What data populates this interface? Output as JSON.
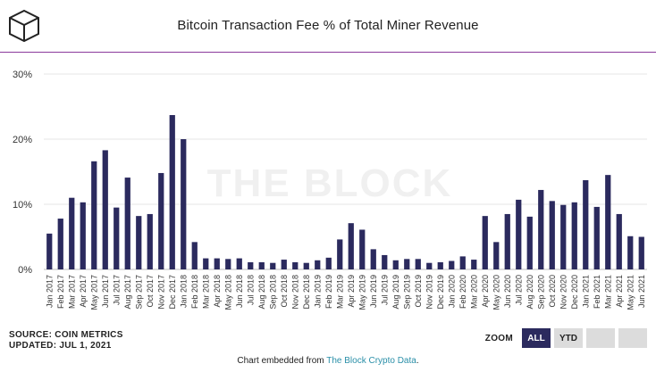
{
  "header": {
    "title": "Bitcoin Transaction Fee % of Total Miner Revenue",
    "logo_icon": "the-block-cube-icon"
  },
  "watermark": "THE BLOCK",
  "footer": {
    "source_line1": "SOURCE: COIN METRICS",
    "source_line2": "UPDATED: JUL 1, 2021",
    "zoom_label": "ZOOM",
    "zoom_all": "ALL",
    "zoom_ytd": "YTD",
    "embed_text": "Chart embedded from ",
    "embed_link": "The Block Crypto Data",
    "embed_end": "."
  },
  "colors": {
    "bar": "#2b2a5e",
    "accent_rule": "#8b3a9b",
    "link": "#2a8fa8",
    "grid": "#e6e6e6",
    "watermark": "#f0f0f0"
  },
  "chart_data": {
    "type": "bar",
    "title": "Bitcoin Transaction Fee % of Total Miner Revenue",
    "xlabel": "",
    "ylabel": "",
    "ylim": [
      0,
      30
    ],
    "yticks": [
      "0%",
      "10%",
      "20%",
      "30%"
    ],
    "ytick_values": [
      0,
      10,
      20,
      30
    ],
    "grid": true,
    "legend": "none",
    "categories": [
      "Jan 2017",
      "Feb 2017",
      "Mar 2017",
      "Apr 2017",
      "May 2017",
      "Jun 2017",
      "Jul 2017",
      "Aug 2017",
      "Sep 2017",
      "Oct 2017",
      "Nov 2017",
      "Dec 2017",
      "Jan 2018",
      "Feb 2018",
      "Mar 2018",
      "Apr 2018",
      "May 2018",
      "Jun 2018",
      "Jul 2018",
      "Aug 2018",
      "Sep 2018",
      "Oct 2018",
      "Nov 2018",
      "Dec 2018",
      "Jan 2019",
      "Feb 2019",
      "Mar 2019",
      "Apr 2019",
      "May 2019",
      "Jun 2019",
      "Jul 2019",
      "Aug 2019",
      "Sep 2019",
      "Oct 2019",
      "Nov 2019",
      "Dec 2019",
      "Jan 2020",
      "Feb 2020",
      "Mar 2020",
      "Apr 2020",
      "May 2020",
      "Jun 2020",
      "Jul 2020",
      "Aug 2020",
      "Sep 2020",
      "Oct 2020",
      "Nov 2020",
      "Dec 2020",
      "Jan 2021",
      "Feb 2021",
      "Mar 2021",
      "Apr 2021",
      "May 2021",
      "Jun 2021"
    ],
    "values": [
      5.5,
      7.8,
      11.0,
      10.3,
      16.6,
      18.3,
      9.5,
      14.1,
      8.2,
      8.5,
      14.8,
      23.7,
      20.0,
      4.2,
      1.7,
      1.7,
      1.6,
      1.7,
      1.1,
      1.1,
      1.0,
      1.5,
      1.1,
      1.0,
      1.4,
      1.8,
      4.6,
      7.1,
      6.1,
      3.1,
      2.2,
      1.4,
      1.6,
      1.6,
      1.0,
      1.1,
      1.3,
      2.0,
      1.5,
      8.2,
      4.2,
      8.5,
      10.7,
      8.1,
      12.2,
      10.5,
      9.9,
      10.3,
      13.7,
      9.6,
      14.5,
      8.5,
      5.1,
      5.0
    ]
  }
}
